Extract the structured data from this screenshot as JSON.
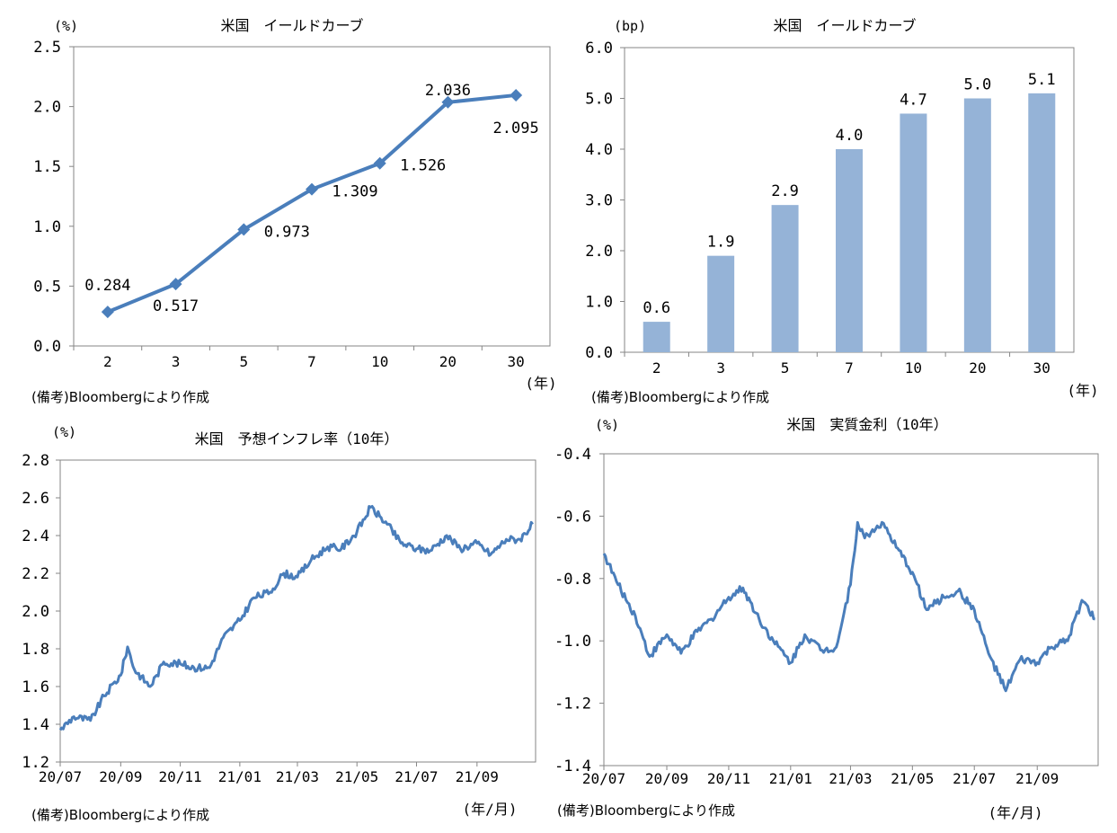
{
  "colors": {
    "line": "#4a7ebb",
    "bar": "#95b3d7",
    "axis": "#868686"
  },
  "chart_data": [
    {
      "type": "line",
      "title": "米国　イールドカーブ",
      "ylabel": "(%)",
      "xlabel": "(年)",
      "note": "(備考)Bloombergにより作成",
      "categories": [
        "2",
        "3",
        "5",
        "7",
        "10",
        "20",
        "30"
      ],
      "values": [
        0.284,
        0.517,
        0.973,
        1.309,
        1.526,
        2.036,
        2.095
      ],
      "data_labels": [
        "0.284",
        "0.517",
        "0.973",
        "1.309",
        "1.526",
        "2.036",
        "2.095"
      ],
      "marker": "diamond",
      "ylim": [
        0,
        2.5
      ],
      "yticks": [
        "0.0",
        "0.5",
        "1.0",
        "1.5",
        "2.0",
        "2.5"
      ],
      "grid": false
    },
    {
      "type": "bar",
      "title": "米国　イールドカーブ",
      "ylabel": "(bp)",
      "xlabel": "(年)",
      "note": "(備考)Bloombergにより作成",
      "categories": [
        "2",
        "3",
        "5",
        "7",
        "10",
        "20",
        "30"
      ],
      "values": [
        0.6,
        1.9,
        2.9,
        4.0,
        4.7,
        5.0,
        5.1
      ],
      "data_labels": [
        "0.6",
        "1.9",
        "2.9",
        "4.0",
        "4.7",
        "5.0",
        "5.1"
      ],
      "ylim": [
        0,
        6
      ],
      "yticks": [
        "0.0",
        "1.0",
        "2.0",
        "3.0",
        "4.0",
        "5.0",
        "6.0"
      ],
      "grid": false
    },
    {
      "type": "line",
      "title": "米国　予想インフレ率（10年）",
      "ylabel": "(%)",
      "xlabel": "(年/月)",
      "note": "(備考)Bloombergにより作成",
      "xlim": [
        "2020-07-01",
        "2021-10-31"
      ],
      "xticks": [
        "20/07",
        "20/09",
        "20/11",
        "21/01",
        "21/03",
        "21/05",
        "21/07",
        "21/09"
      ],
      "ylim": [
        1.2,
        2.8
      ],
      "yticks": [
        "1.2",
        "1.4",
        "1.6",
        "1.8",
        "2.0",
        "2.2",
        "2.4",
        "2.6",
        "2.8"
      ],
      "grid": false,
      "x": [
        "2020-07-01",
        "2020-07-15",
        "2020-08-01",
        "2020-08-15",
        "2020-09-01",
        "2020-09-08",
        "2020-09-15",
        "2020-10-01",
        "2020-10-08",
        "2020-10-15",
        "2020-11-01",
        "2020-11-15",
        "2020-12-01",
        "2020-12-15",
        "2021-01-01",
        "2021-01-15",
        "2021-02-01",
        "2021-02-15",
        "2021-03-01",
        "2021-03-15",
        "2021-04-01",
        "2021-04-15",
        "2021-05-01",
        "2021-05-15",
        "2021-06-01",
        "2021-06-15",
        "2021-07-01",
        "2021-07-15",
        "2021-08-01",
        "2021-08-15",
        "2021-09-01",
        "2021-09-15",
        "2021-10-01",
        "2021-10-15",
        "2021-10-28"
      ],
      "values": [
        1.37,
        1.44,
        1.42,
        1.55,
        1.66,
        1.81,
        1.69,
        1.6,
        1.66,
        1.73,
        1.72,
        1.7,
        1.7,
        1.86,
        1.95,
        2.07,
        2.1,
        2.2,
        2.18,
        2.27,
        2.34,
        2.33,
        2.42,
        2.55,
        2.46,
        2.36,
        2.33,
        2.32,
        2.4,
        2.33,
        2.36,
        2.3,
        2.38,
        2.38,
        2.46
      ]
    },
    {
      "type": "line",
      "title": "米国　実質金利（10年）",
      "ylabel": "(%)",
      "xlabel": "(年/月)",
      "note": "(備考)Bloombergにより作成",
      "xlim": [
        "2020-07-01",
        "2021-10-31"
      ],
      "xticks": [
        "20/07",
        "20/09",
        "20/11",
        "21/01",
        "21/03",
        "21/05",
        "21/07",
        "21/09"
      ],
      "ylim": [
        -1.4,
        -0.4
      ],
      "yticks": [
        "-1.4",
        "-1.2",
        "-1.0",
        "-0.8",
        "-0.6",
        "-0.4"
      ],
      "grid": false,
      "x": [
        "2020-07-01",
        "2020-07-15",
        "2020-08-01",
        "2020-08-15",
        "2020-09-01",
        "2020-09-15",
        "2020-10-01",
        "2020-10-15",
        "2020-11-01",
        "2020-11-15",
        "2020-12-01",
        "2020-12-15",
        "2021-01-01",
        "2021-01-15",
        "2021-02-01",
        "2021-02-15",
        "2021-03-01",
        "2021-03-08",
        "2021-03-15",
        "2021-04-01",
        "2021-04-15",
        "2021-05-01",
        "2021-05-15",
        "2021-06-01",
        "2021-06-15",
        "2021-07-01",
        "2021-07-15",
        "2021-08-01",
        "2021-08-15",
        "2021-09-01",
        "2021-09-15",
        "2021-10-01",
        "2021-10-15",
        "2021-10-28"
      ],
      "values": [
        -0.72,
        -0.82,
        -0.92,
        -1.05,
        -0.98,
        -1.04,
        -0.97,
        -0.93,
        -0.86,
        -0.83,
        -0.93,
        -1.0,
        -1.07,
        -0.98,
        -1.03,
        -1.02,
        -0.82,
        -0.62,
        -0.67,
        -0.62,
        -0.7,
        -0.78,
        -0.9,
        -0.86,
        -0.84,
        -0.9,
        -1.04,
        -1.16,
        -1.06,
        -1.07,
        -1.02,
        -1.0,
        -0.87,
        -0.93
      ]
    }
  ]
}
